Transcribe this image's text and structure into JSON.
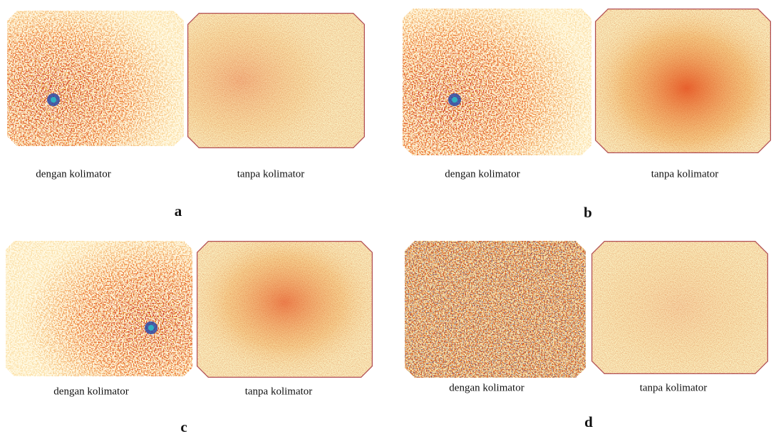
{
  "panels": [
    {
      "label": "a",
      "left_caption": "dengan kolimator",
      "right_caption": "tanpa kolimator"
    },
    {
      "label": "b",
      "left_caption": "dengan kolimator",
      "right_caption": "tanpa kolimator"
    },
    {
      "label": "c",
      "left_caption": "dengan kolimator",
      "right_caption": "tanpa kolimator"
    },
    {
      "label": "d",
      "left_caption": "dengan kolimator",
      "right_caption": "tanpa kolimator"
    }
  ]
}
